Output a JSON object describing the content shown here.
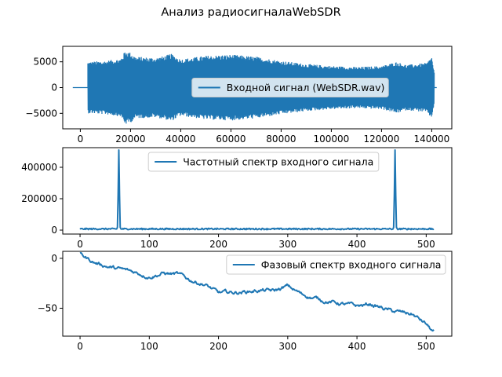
{
  "figure": {
    "title": "Анализ радиосигналаWebSDR",
    "line_color": "#1f77b4"
  },
  "chart_data": [
    {
      "type": "line",
      "name": "input-signal",
      "series": [
        {
          "name": "Входной сигнал (WebSDR.wav)"
        }
      ],
      "xlim": [
        -7000,
        148000
      ],
      "ylim": [
        -8000,
        8000
      ],
      "xticks": [
        0,
        20000,
        40000,
        60000,
        80000,
        100000,
        120000,
        140000
      ],
      "xtick_labels": [
        "0",
        "20000",
        "40000",
        "60000",
        "80000",
        "100000",
        "120000",
        "140000"
      ],
      "yticks": [
        5000,
        0,
        -5000
      ],
      "ytick_labels": [
        "5000",
        "0",
        "−5000"
      ],
      "signal_start": 3000,
      "signal_end": 141000,
      "envelope": [
        [
          3000,
          5000
        ],
        [
          10000,
          5200
        ],
        [
          16000,
          5600
        ],
        [
          18000,
          7200
        ],
        [
          20000,
          6800
        ],
        [
          22000,
          6000
        ],
        [
          30000,
          5800
        ],
        [
          34000,
          6200
        ],
        [
          36000,
          6600
        ],
        [
          40000,
          5500
        ],
        [
          50000,
          6200
        ],
        [
          60000,
          6400
        ],
        [
          70000,
          6000
        ],
        [
          80000,
          5200
        ],
        [
          90000,
          4600
        ],
        [
          100000,
          4200
        ],
        [
          110000,
          4000
        ],
        [
          120000,
          4200
        ],
        [
          126000,
          5000
        ],
        [
          130000,
          4400
        ],
        [
          138000,
          4800
        ],
        [
          140000,
          6000
        ],
        [
          141000,
          3000
        ]
      ],
      "legend_position": "center",
      "grid": false
    },
    {
      "type": "line",
      "name": "amplitude-spectrum",
      "series": [
        {
          "name": "Частотный спектр входного сигнала"
        }
      ],
      "xlim": [
        -25,
        537
      ],
      "ylim": [
        -25000,
        525000
      ],
      "xticks": [
        0,
        100,
        200,
        300,
        400,
        500
      ],
      "xtick_labels": [
        "0",
        "100",
        "200",
        "300",
        "400",
        "500"
      ],
      "yticks": [
        400000,
        200000,
        0
      ],
      "ytick_labels": [
        "400000",
        "200000",
        "0"
      ],
      "peaks": [
        {
          "x": 56,
          "y": 510000
        },
        {
          "x": 455,
          "y": 510000
        }
      ],
      "n_points": 512,
      "legend_position": "top-center",
      "grid": false
    },
    {
      "type": "line",
      "name": "phase-spectrum",
      "series": [
        {
          "name": "Фазовый спектр входного сигнала"
        }
      ],
      "xlim": [
        -25,
        537
      ],
      "ylim": [
        -78,
        7
      ],
      "xticks": [
        0,
        100,
        200,
        300,
        400,
        500
      ],
      "xtick_labels": [
        "0",
        "100",
        "200",
        "300",
        "400",
        "500"
      ],
      "yticks": [
        0,
        -50
      ],
      "ytick_labels": [
        "0",
        "−50"
      ],
      "trend": [
        [
          0,
          4
        ],
        [
          20,
          -4
        ],
        [
          50,
          -10
        ],
        [
          80,
          -14
        ],
        [
          100,
          -18
        ],
        [
          120,
          -15
        ],
        [
          140,
          -16
        ],
        [
          160,
          -22
        ],
        [
          180,
          -26
        ],
        [
          200,
          -35
        ],
        [
          230,
          -34
        ],
        [
          260,
          -32
        ],
        [
          280,
          -33
        ],
        [
          300,
          -28
        ],
        [
          320,
          -36
        ],
        [
          350,
          -42
        ],
        [
          380,
          -46
        ],
        [
          400,
          -48
        ],
        [
          420,
          -46
        ],
        [
          450,
          -53
        ],
        [
          480,
          -56
        ],
        [
          500,
          -66
        ],
        [
          510,
          -74
        ]
      ],
      "legend_position": "top-right",
      "grid": false
    }
  ]
}
